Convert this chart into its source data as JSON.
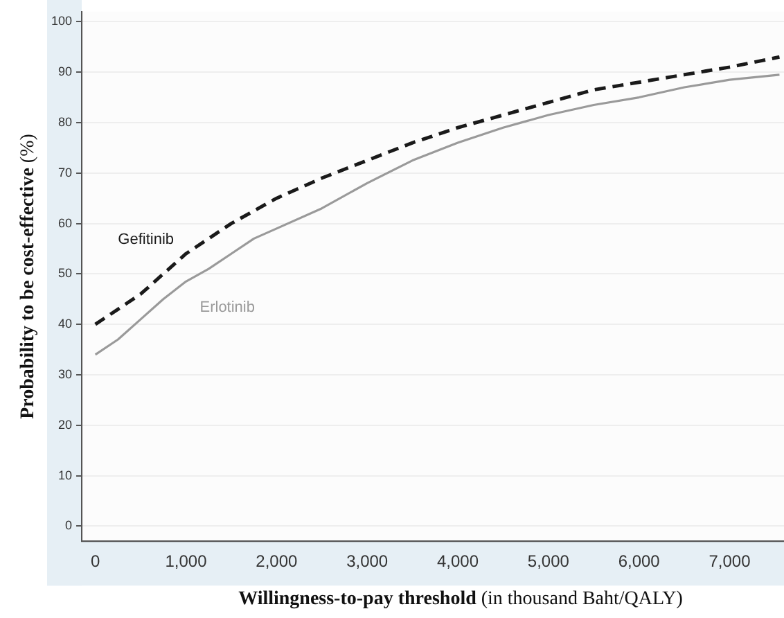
{
  "chart_data": {
    "type": "line",
    "xlabel": "Willingness-to-pay threshold (in thousand Baht/QALY)",
    "ylabel": "Probability to be cost-effective (%)",
    "xlim": [
      -150,
      7600
    ],
    "ylim": [
      -3,
      102
    ],
    "xticks": [
      {
        "value": 0,
        "label": "0"
      },
      {
        "value": 1000,
        "label": "1,000"
      },
      {
        "value": 2000,
        "label": "2,000"
      },
      {
        "value": 3000,
        "label": "3,000"
      },
      {
        "value": 4000,
        "label": "4,000"
      },
      {
        "value": 5000,
        "label": "5,000"
      },
      {
        "value": 6000,
        "label": "6,000"
      },
      {
        "value": 7000,
        "label": "7,000"
      }
    ],
    "yticks": [
      0,
      10,
      20,
      30,
      40,
      50,
      60,
      70,
      80,
      90,
      100
    ],
    "grid": "y",
    "legend": false,
    "marker": "none",
    "x": [
      0,
      250,
      500,
      750,
      1000,
      1250,
      1500,
      1750,
      2000,
      2500,
      3000,
      3500,
      4000,
      4500,
      5000,
      5500,
      6000,
      6500,
      7000,
      7550
    ],
    "series": [
      {
        "name": "Gefitinib",
        "color": "#1a1a1a",
        "line_style": "dashed",
        "values": [
          40,
          43,
          46,
          50,
          54,
          57,
          60,
          62.5,
          65,
          69,
          72.5,
          76,
          79,
          81.5,
          84,
          86.5,
          88,
          89.5,
          91,
          93
        ]
      },
      {
        "name": "Erlotinib",
        "color": "#9a9a9a",
        "line_style": "solid",
        "values": [
          34,
          37,
          41,
          45,
          48.5,
          51,
          54,
          57,
          59,
          63,
          68,
          72.5,
          76,
          79,
          81.5,
          83.5,
          85,
          87,
          88.5,
          89.5
        ]
      }
    ]
  }
}
